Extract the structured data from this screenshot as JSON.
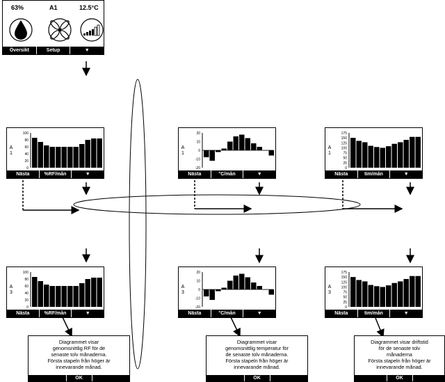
{
  "main": {
    "humidity": "63%",
    "unit": "A1",
    "temperature": "12.5°C",
    "menu": [
      "Översikt",
      "Setup",
      "▼"
    ]
  },
  "charts": [
    {
      "id": "rf1",
      "unit": "A\n1",
      "menu": [
        "Nästa",
        "%RF/mån",
        "▼"
      ]
    },
    {
      "id": "temp1",
      "unit": "A\n1",
      "menu": [
        "Nästa",
        "°C/mån",
        "▼"
      ]
    },
    {
      "id": "tim1",
      "unit": "A\n1",
      "menu": [
        "Nästa",
        "tim/mån",
        "▼"
      ]
    },
    {
      "id": "rf3",
      "unit": "A\n3",
      "menu": [
        "Nästa",
        "%RF/mån",
        "▼"
      ]
    },
    {
      "id": "temp3",
      "unit": "A\n3",
      "menu": [
        "Nästa",
        "°C/mån",
        "▼"
      ]
    },
    {
      "id": "tim3",
      "unit": "A\n3",
      "menu": [
        "Nästa",
        "tim/mån",
        "▼"
      ]
    }
  ],
  "info_boxes": [
    {
      "text": "Diagrammet visar\ngenomsnittlig RF för de\nsenaste tolv månaderna.\nFörsta stapeln från höger är\ninnevarande månad.",
      "ok": "OK"
    },
    {
      "text": "Diagrammet visar\ngenomsnittlig temperatur för\nde senaste tolv månaderna.\nFörsta stapeln från höger är\ninnevarande månad.",
      "ok": "OK"
    },
    {
      "text": "Diagrammet visar driftstid\nför de senaste tolv\nmånaderna\nFörsta stapeln från höger är\ninnevarande månad.",
      "ok": "OK"
    }
  ],
  "chart_data": [
    {
      "type": "bar",
      "id": "rf",
      "ylabel": "%RF/mån",
      "yticks": [
        "100",
        "80",
        "60",
        "40",
        "20",
        "0"
      ],
      "ylim": [
        0,
        100
      ],
      "values": [
        86,
        74,
        64,
        60,
        60,
        60,
        60,
        60,
        68,
        80,
        84,
        84
      ]
    },
    {
      "type": "bar",
      "id": "temp",
      "ylabel": "°C/mån",
      "yticks": [
        "20",
        "10",
        "0",
        "-10",
        "-20"
      ],
      "ylim": [
        -20,
        20
      ],
      "values": [
        -8,
        -12,
        -2,
        2,
        10,
        16,
        18,
        14,
        8,
        4,
        0,
        -6
      ]
    },
    {
      "type": "bar",
      "id": "tim",
      "ylabel": "tim/mån",
      "yticks": [
        "175",
        "150",
        "125",
        "100",
        "75",
        "50",
        "25",
        "0"
      ],
      "ylim": [
        0,
        175
      ],
      "values": [
        150,
        135,
        128,
        110,
        104,
        100,
        108,
        120,
        128,
        140,
        155,
        155
      ]
    }
  ]
}
